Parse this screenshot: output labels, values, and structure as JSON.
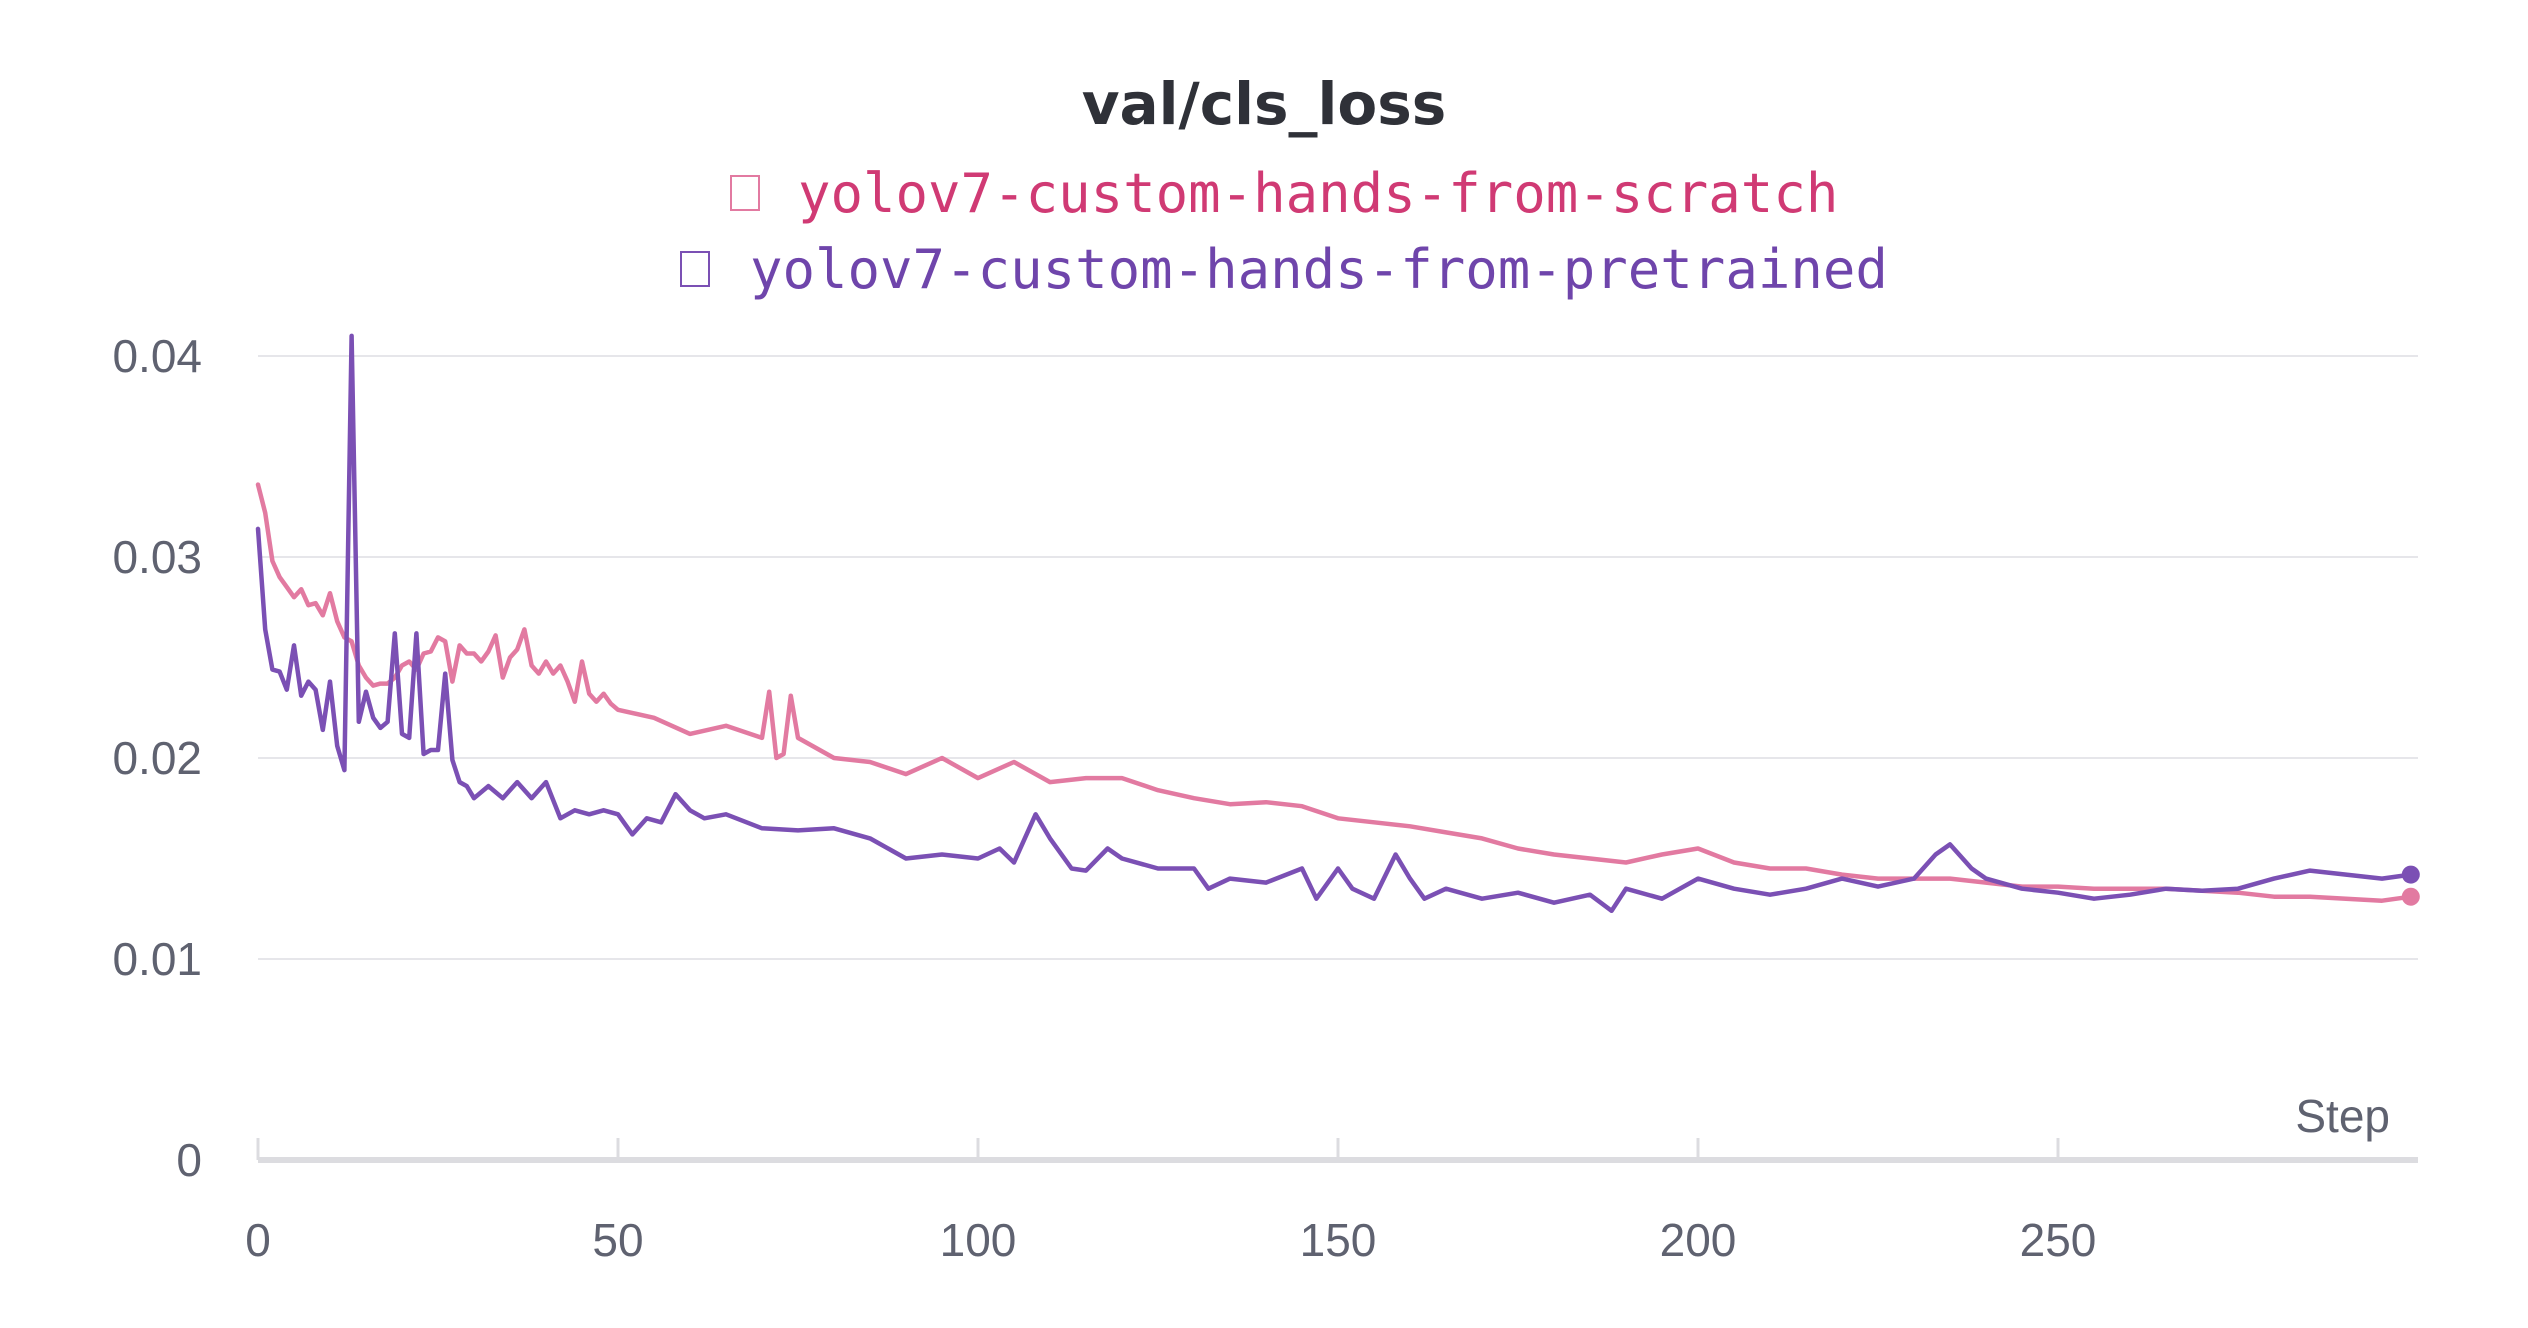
{
  "chart_data": {
    "type": "line",
    "title": "val/cls_loss",
    "xlabel": "Step",
    "ylabel": "",
    "xlim": [
      0,
      300
    ],
    "ylim": [
      0,
      0.04
    ],
    "xticks": [
      0,
      50,
      100,
      150,
      200,
      250
    ],
    "xtick_labels": [
      "0",
      "50",
      "100",
      "150",
      "200",
      "250"
    ],
    "yticks": [
      0,
      0.01,
      0.02,
      0.03,
      0.04
    ],
    "ytick_labels": [
      "0",
      "0.01",
      "0.02",
      "0.03",
      "0.04"
    ],
    "grid": true,
    "legend_position": "top-center",
    "series": [
      {
        "name": "yolov7-custom-hands-from-scratch",
        "color": "#e27aa1",
        "points": [
          [
            0,
            0.0336
          ],
          [
            1,
            0.0322
          ],
          [
            2,
            0.0298
          ],
          [
            3,
            0.029
          ],
          [
            4,
            0.0285
          ],
          [
            5,
            0.028
          ],
          [
            6,
            0.0284
          ],
          [
            7,
            0.0276
          ],
          [
            8,
            0.0277
          ],
          [
            9,
            0.0271
          ],
          [
            10,
            0.0282
          ],
          [
            11,
            0.0268
          ],
          [
            12,
            0.026
          ],
          [
            13,
            0.0258
          ],
          [
            14,
            0.0246
          ],
          [
            15,
            0.024
          ],
          [
            16,
            0.0236
          ],
          [
            17,
            0.0237
          ],
          [
            18,
            0.0237
          ],
          [
            19,
            0.024
          ],
          [
            20,
            0.0246
          ],
          [
            21,
            0.0248
          ],
          [
            22,
            0.0244
          ],
          [
            23,
            0.0252
          ],
          [
            24,
            0.0253
          ],
          [
            25,
            0.026
          ],
          [
            26,
            0.0258
          ],
          [
            27,
            0.0238
          ],
          [
            28,
            0.0256
          ],
          [
            29,
            0.0252
          ],
          [
            30,
            0.0252
          ],
          [
            31,
            0.0248
          ],
          [
            32,
            0.0253
          ],
          [
            33,
            0.0261
          ],
          [
            34,
            0.024
          ],
          [
            35,
            0.025
          ],
          [
            36,
            0.0254
          ],
          [
            37,
            0.0264
          ],
          [
            38,
            0.0246
          ],
          [
            39,
            0.0242
          ],
          [
            40,
            0.0248
          ],
          [
            41,
            0.0242
          ],
          [
            42,
            0.0246
          ],
          [
            43,
            0.0238
          ],
          [
            44,
            0.0228
          ],
          [
            45,
            0.0248
          ],
          [
            46,
            0.0232
          ],
          [
            47,
            0.0228
          ],
          [
            48,
            0.0232
          ],
          [
            49,
            0.0227
          ],
          [
            50,
            0.0224
          ],
          [
            55,
            0.022
          ],
          [
            60,
            0.0212
          ],
          [
            65,
            0.0216
          ],
          [
            70,
            0.021
          ],
          [
            71,
            0.0233
          ],
          [
            72,
            0.02
          ],
          [
            73,
            0.0202
          ],
          [
            74,
            0.0231
          ],
          [
            75,
            0.021
          ],
          [
            80,
            0.02
          ],
          [
            85,
            0.0198
          ],
          [
            90,
            0.0192
          ],
          [
            95,
            0.02
          ],
          [
            100,
            0.019
          ],
          [
            105,
            0.0198
          ],
          [
            110,
            0.0188
          ],
          [
            115,
            0.019
          ],
          [
            120,
            0.019
          ],
          [
            125,
            0.0184
          ],
          [
            130,
            0.018
          ],
          [
            135,
            0.0177
          ],
          [
            140,
            0.0178
          ],
          [
            145,
            0.0176
          ],
          [
            150,
            0.017
          ],
          [
            155,
            0.0168
          ],
          [
            160,
            0.0166
          ],
          [
            165,
            0.0163
          ],
          [
            170,
            0.016
          ],
          [
            175,
            0.0155
          ],
          [
            180,
            0.0152
          ],
          [
            185,
            0.015
          ],
          [
            190,
            0.0148
          ],
          [
            195,
            0.0152
          ],
          [
            200,
            0.0155
          ],
          [
            205,
            0.0148
          ],
          [
            210,
            0.0145
          ],
          [
            215,
            0.0145
          ],
          [
            220,
            0.0142
          ],
          [
            225,
            0.014
          ],
          [
            230,
            0.014
          ],
          [
            235,
            0.014
          ],
          [
            240,
            0.0138
          ],
          [
            245,
            0.0136
          ],
          [
            250,
            0.0136
          ],
          [
            255,
            0.0135
          ],
          [
            260,
            0.0135
          ],
          [
            265,
            0.0135
          ],
          [
            270,
            0.0134
          ],
          [
            275,
            0.0133
          ],
          [
            280,
            0.0131
          ],
          [
            285,
            0.0131
          ],
          [
            290,
            0.013
          ],
          [
            295,
            0.0129
          ],
          [
            299,
            0.0131
          ]
        ]
      },
      {
        "name": "yolov7-custom-hands-from-pretrained",
        "color": "#7b50b4",
        "points": [
          [
            0,
            0.0314
          ],
          [
            1,
            0.0264
          ],
          [
            2,
            0.0244
          ],
          [
            3,
            0.0243
          ],
          [
            4,
            0.0234
          ],
          [
            5,
            0.0256
          ],
          [
            6,
            0.0231
          ],
          [
            7,
            0.0238
          ],
          [
            8,
            0.0234
          ],
          [
            9,
            0.0214
          ],
          [
            10,
            0.0238
          ],
          [
            11,
            0.0206
          ],
          [
            12,
            0.0194
          ],
          [
            13,
            0.041
          ],
          [
            14,
            0.0218
          ],
          [
            15,
            0.0233
          ],
          [
            16,
            0.022
          ],
          [
            17,
            0.0215
          ],
          [
            18,
            0.0218
          ],
          [
            19,
            0.0262
          ],
          [
            20,
            0.0212
          ],
          [
            21,
            0.021
          ],
          [
            22,
            0.0262
          ],
          [
            23,
            0.0202
          ],
          [
            24,
            0.0204
          ],
          [
            25,
            0.0204
          ],
          [
            26,
            0.0242
          ],
          [
            27,
            0.0199
          ],
          [
            28,
            0.0188
          ],
          [
            29,
            0.0186
          ],
          [
            30,
            0.018
          ],
          [
            32,
            0.0186
          ],
          [
            34,
            0.018
          ],
          [
            36,
            0.0188
          ],
          [
            38,
            0.018
          ],
          [
            40,
            0.0188
          ],
          [
            42,
            0.017
          ],
          [
            44,
            0.0174
          ],
          [
            46,
            0.0172
          ],
          [
            48,
            0.0174
          ],
          [
            50,
            0.0172
          ],
          [
            52,
            0.0162
          ],
          [
            54,
            0.017
          ],
          [
            56,
            0.0168
          ],
          [
            58,
            0.0182
          ],
          [
            60,
            0.0174
          ],
          [
            62,
            0.017
          ],
          [
            65,
            0.0172
          ],
          [
            70,
            0.0165
          ],
          [
            75,
            0.0164
          ],
          [
            80,
            0.0165
          ],
          [
            85,
            0.016
          ],
          [
            90,
            0.015
          ],
          [
            95,
            0.0152
          ],
          [
            100,
            0.015
          ],
          [
            103,
            0.0155
          ],
          [
            105,
            0.0148
          ],
          [
            108,
            0.0172
          ],
          [
            110,
            0.016
          ],
          [
            113,
            0.0145
          ],
          [
            115,
            0.0144
          ],
          [
            118,
            0.0155
          ],
          [
            120,
            0.015
          ],
          [
            125,
            0.0145
          ],
          [
            130,
            0.0145
          ],
          [
            132,
            0.0135
          ],
          [
            135,
            0.014
          ],
          [
            140,
            0.0138
          ],
          [
            145,
            0.0145
          ],
          [
            147,
            0.013
          ],
          [
            150,
            0.0145
          ],
          [
            152,
            0.0135
          ],
          [
            155,
            0.013
          ],
          [
            158,
            0.0152
          ],
          [
            160,
            0.014
          ],
          [
            162,
            0.013
          ],
          [
            165,
            0.0135
          ],
          [
            170,
            0.013
          ],
          [
            175,
            0.0133
          ],
          [
            180,
            0.0128
          ],
          [
            185,
            0.0132
          ],
          [
            188,
            0.0124
          ],
          [
            190,
            0.0135
          ],
          [
            195,
            0.013
          ],
          [
            200,
            0.014
          ],
          [
            205,
            0.0135
          ],
          [
            210,
            0.0132
          ],
          [
            215,
            0.0135
          ],
          [
            220,
            0.014
          ],
          [
            225,
            0.0136
          ],
          [
            230,
            0.014
          ],
          [
            233,
            0.0152
          ],
          [
            235,
            0.0157
          ],
          [
            238,
            0.0145
          ],
          [
            240,
            0.014
          ],
          [
            245,
            0.0135
          ],
          [
            250,
            0.0133
          ],
          [
            255,
            0.013
          ],
          [
            260,
            0.0132
          ],
          [
            265,
            0.0135
          ],
          [
            270,
            0.0134
          ],
          [
            275,
            0.0135
          ],
          [
            280,
            0.014
          ],
          [
            285,
            0.0144
          ],
          [
            290,
            0.0142
          ],
          [
            295,
            0.014
          ],
          [
            299,
            0.0142
          ]
        ]
      }
    ]
  }
}
